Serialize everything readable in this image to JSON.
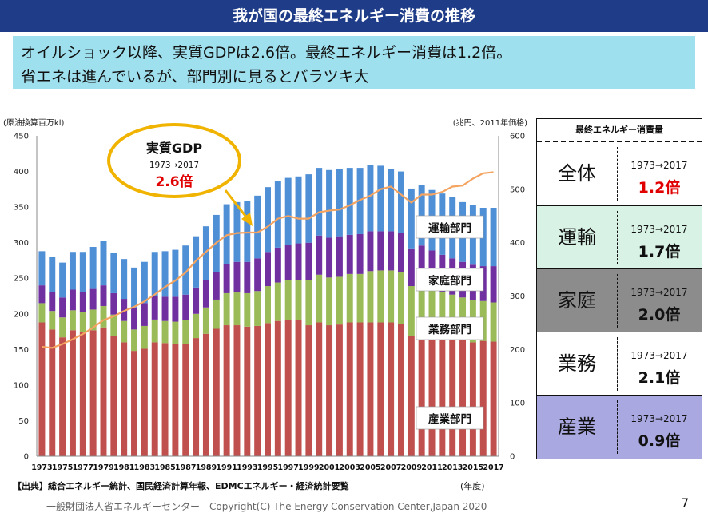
{
  "header": {
    "title": "我が国の最終エネルギー消費の推移",
    "subtitle_line1": "オイルショック以降、実質GDPは2.6倍。最終エネルギー消費は1.2倍。",
    "subtitle_line2": "省エネは進んでいるが、部門別に見るとバラツキ大"
  },
  "colors": {
    "title_bg": "#1f3c88",
    "subtitle_bg": "#9fe0ee",
    "industry": "#c0504d",
    "business": "#9bbb59",
    "household": "#7030a0",
    "transport": "#4f8fd6",
    "gdp_line": "#f4a460",
    "callout_border": "#f0b400"
  },
  "chart_data": {
    "type": "bar",
    "stacked": true,
    "left_axis_unit": "(原油換算百万kl)",
    "right_axis_unit": "(兆円、2011年価格)",
    "x_unit": "(年度)",
    "ylim": [
      0,
      450
    ],
    "y2lim": [
      0,
      600
    ],
    "yticks": [
      0,
      50,
      100,
      150,
      200,
      250,
      300,
      350,
      400,
      450
    ],
    "y2ticks": [
      0,
      100,
      200,
      300,
      400,
      500,
      600
    ],
    "xtick_labels": [
      "1973",
      "1975",
      "1977",
      "1979",
      "1981",
      "1983",
      "1985",
      "1987",
      "1989",
      "1991",
      "1993",
      "1995",
      "1997",
      "1999",
      "2001",
      "2003",
      "2005",
      "2007",
      "2009",
      "2011",
      "2013",
      "2015",
      "2017"
    ],
    "years": [
      1973,
      1974,
      1975,
      1976,
      1977,
      1978,
      1979,
      1980,
      1981,
      1982,
      1983,
      1984,
      1985,
      1986,
      1987,
      1988,
      1989,
      1990,
      1991,
      1992,
      1993,
      1994,
      1995,
      1996,
      1997,
      1998,
      1999,
      2000,
      2001,
      2002,
      2003,
      2004,
      2005,
      2006,
      2007,
      2008,
      2009,
      2010,
      2011,
      2012,
      2013,
      2014,
      2015,
      2016,
      2017
    ],
    "series": [
      {
        "name": "産業部門",
        "values": [
          188,
          178,
          167,
          177,
          174,
          177,
          181,
          169,
          160,
          148,
          151,
          160,
          159,
          158,
          158,
          166,
          172,
          179,
          184,
          184,
          182,
          183,
          187,
          190,
          191,
          191,
          184,
          188,
          184,
          185,
          188,
          188,
          188,
          188,
          188,
          186,
          169,
          171,
          169,
          164,
          165,
          163,
          160,
          162,
          161
        ]
      },
      {
        "name": "業務部門",
        "values": [
          27,
          26,
          28,
          28,
          28,
          29,
          30,
          30,
          30,
          30,
          32,
          32,
          31,
          31,
          33,
          34,
          37,
          41,
          45,
          46,
          47,
          49,
          52,
          54,
          56,
          57,
          63,
          67,
          67,
          67,
          68,
          68,
          72,
          73,
          73,
          73,
          70,
          71,
          68,
          67,
          62,
          60,
          59,
          56,
          55
        ]
      },
      {
        "name": "家庭部門",
        "values": [
          25,
          27,
          28,
          29,
          29,
          29,
          29,
          30,
          31,
          31,
          32,
          33,
          34,
          35,
          36,
          37,
          38,
          39,
          41,
          43,
          44,
          46,
          48,
          49,
          50,
          51,
          53,
          55,
          56,
          57,
          55,
          56,
          56,
          55,
          55,
          55,
          53,
          54,
          52,
          52,
          51,
          50,
          50,
          49,
          51
        ]
      },
      {
        "name": "運輸部門",
        "values": [
          48,
          49,
          49,
          53,
          56,
          59,
          62,
          57,
          56,
          56,
          58,
          62,
          64,
          66,
          69,
          72,
          76,
          80,
          84,
          84,
          86,
          88,
          91,
          93,
          94,
          94,
          96,
          95,
          95,
          95,
          94,
          93,
          93,
          92,
          87,
          86,
          84,
          85,
          85,
          86,
          86,
          84,
          84,
          82,
          82
        ]
      }
    ],
    "gdp": {
      "values": [
        205,
        203,
        210,
        219,
        229,
        241,
        255,
        262,
        272,
        280,
        290,
        303,
        317,
        329,
        344,
        366,
        383,
        400,
        414,
        418,
        419,
        419,
        430,
        445,
        450,
        445,
        445,
        457,
        460,
        462,
        470,
        480,
        488,
        500,
        505,
        490,
        475,
        490,
        490,
        495,
        505,
        507,
        520,
        530,
        532
      ]
    },
    "segment_labels": [
      "運輸部門",
      "家庭部門",
      "業務部門",
      "産業部門"
    ],
    "callout": {
      "title": "実質GDP",
      "period": "1973→2017",
      "value": "2.6倍"
    }
  },
  "side_table": {
    "header": "最終エネルギー消費量",
    "rows": [
      {
        "name": "全体",
        "period": "1973→2017",
        "ratio": "1.2倍",
        "bg": "#ffffff",
        "ratio_color": "#e00000"
      },
      {
        "name": "運輸",
        "period": "1973→2017",
        "ratio": "1.7倍",
        "bg": "#d9f2e6",
        "ratio_color": "#111111"
      },
      {
        "name": "家庭",
        "period": "1973→2017",
        "ratio": "2.0倍",
        "bg": "#8c8c8c",
        "ratio_color": "#111111"
      },
      {
        "name": "業務",
        "period": "1973→2017",
        "ratio": "2.1倍",
        "bg": "#ffffff",
        "ratio_color": "#111111"
      },
      {
        "name": "産業",
        "period": "1973→2017",
        "ratio": "0.9倍",
        "bg": "#a9a8e0",
        "ratio_color": "#111111"
      }
    ]
  },
  "source_text": "【出典】総合エネルギー統計、国民経済計算年報、EDMCエネルギー・経済統計要覧",
  "footer_text": "一般財団法人省エネルギーセンター　Copyright(C) The Energy Conservation Center,Japan 2020",
  "page_number": "7"
}
